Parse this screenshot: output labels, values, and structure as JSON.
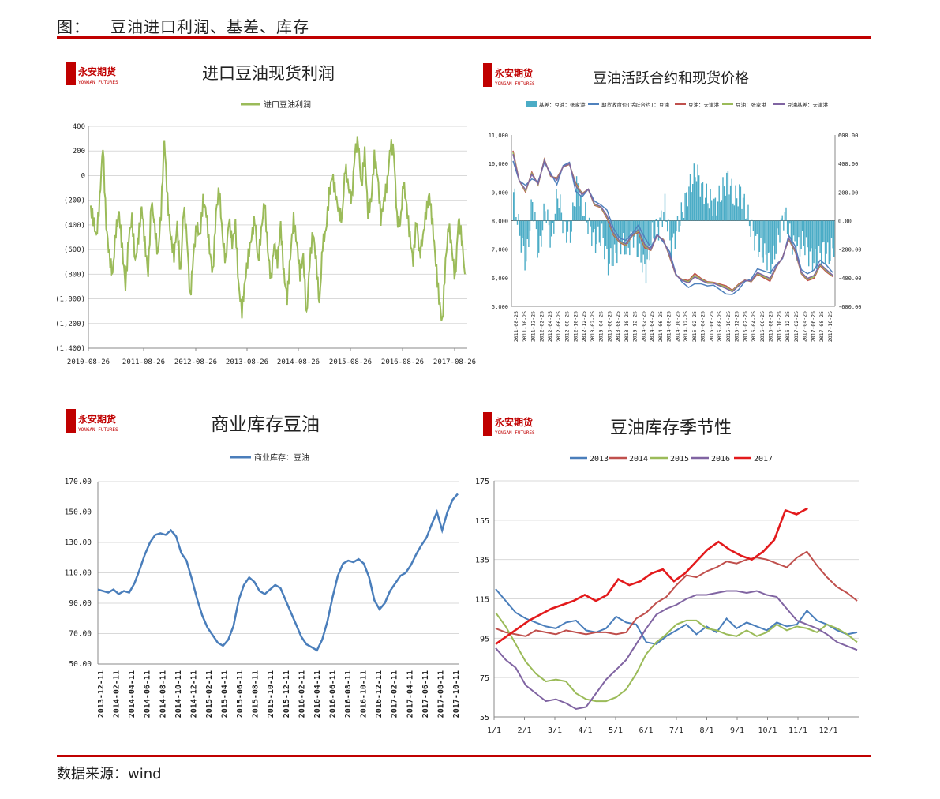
{
  "header": {
    "label": "图：",
    "title": "豆油进口利润、基差、库存"
  },
  "footer": {
    "source": "数据来源：wind"
  },
  "logo": {
    "text_cn": "永安期货",
    "text_en": "YONGAN FUTURES",
    "color": "#c00000"
  },
  "colors": {
    "rule": "#c00000",
    "profit": "#9bbb59",
    "basis": "#4bacc6",
    "futures": "#4f81bd",
    "spot_tj": "#c0504d",
    "spot_zjg": "#9bbb59",
    "basis_tj": "#8064a2",
    "inv": "#4a7ebb"
  },
  "chart_data": [
    {
      "type": "line",
      "title": "进口豆油现货利润",
      "series": [
        {
          "name": "进口豆油利润",
          "color": "#9bbb59"
        }
      ],
      "x_ticks": [
        "2010-08-26",
        "2011-08-26",
        "2012-08-26",
        "2013-08-26",
        "2014-08-26",
        "2015-08-26",
        "2016-08-26",
        "2017-08-26"
      ],
      "y_ticks": [
        "400",
        "200",
        "0",
        "(200)",
        "(400)",
        "(600)",
        "(800)",
        "(1,000)",
        "(1,200)",
        "(1,400)"
      ],
      "ylim": [
        -1400,
        400
      ],
      "values": [
        -250,
        -350,
        -500,
        -200,
        250,
        -400,
        -650,
        -800,
        -450,
        -300,
        -600,
        -900,
        -500,
        -350,
        -700,
        -500,
        -250,
        -550,
        -800,
        -200,
        -400,
        -650,
        -300,
        300,
        -200,
        -500,
        -650,
        -400,
        -800,
        -250,
        -500,
        -1000,
        -650,
        -400,
        -500,
        -200,
        -300,
        -600,
        -800,
        -300,
        -100,
        -500,
        -700,
        -350,
        -550,
        -400,
        -900,
        -1100,
        -850,
        -650,
        -500,
        -350,
        -700,
        -450,
        -200,
        -600,
        -850,
        -550,
        -700,
        -400,
        -800,
        -1000,
        -650,
        -350,
        -550,
        -800,
        -650,
        -1150,
        -700,
        -450,
        -700,
        -1050,
        -550,
        -450,
        -150,
        0,
        -150,
        -300,
        -350,
        80,
        -100,
        -200,
        200,
        280,
        -100,
        200,
        -300,
        -200,
        150,
        0,
        -350,
        -200,
        -50,
        250,
        200,
        -350,
        -400,
        -50,
        -250,
        -500,
        -700,
        -350,
        -650,
        -500,
        -300,
        -150,
        -400,
        -700,
        -1000,
        -1200,
        -700,
        -400,
        -600,
        -850,
        -350,
        -500,
        -800
      ]
    },
    {
      "type": "line",
      "title": "豆油活跃合约和现货价格",
      "legend": [
        "基差：豆油：张家港",
        "期货收盘价(活跃合约)：豆油",
        "豆油：天津港",
        "豆油：张家港",
        "豆油基差：天津港"
      ],
      "x_ticks": [
        "2011-08-25",
        "2011-10-25",
        "2011-12-25",
        "2012-02-25",
        "2012-04-25",
        "2012-06-25",
        "2012-08-25",
        "2012-10-25",
        "2012-12-25",
        "2013-02-25",
        "2013-04-25",
        "2013-06-25",
        "2013-08-25",
        "2013-10-25",
        "2013-12-25",
        "2014-02-25",
        "2014-04-25",
        "2014-06-25",
        "2014-08-25",
        "2014-10-25",
        "2014-12-25",
        "2015-02-25",
        "2015-04-25",
        "2015-06-25",
        "2015-08-25",
        "2015-10-25",
        "2015-12-25",
        "2016-02-25",
        "2016-04-25",
        "2016-06-25",
        "2016-08-25",
        "2016-10-25",
        "2016-12-25",
        "2017-02-25",
        "2017-04-25",
        "2017-06-25",
        "2017-08-25",
        "2017-10-25"
      ],
      "y_ticks_left": [
        "11,000",
        "10,000",
        "9,000",
        "8,000",
        "7,000",
        "6,000",
        "5,000"
      ],
      "y_ticks_right": [
        "600.00",
        "400.00",
        "200.00",
        "0.00",
        "-200.00",
        "-400.00",
        "-600.00"
      ],
      "ylim_left": [
        5000,
        11000
      ],
      "ylim_right": [
        -600,
        600
      ],
      "price": [
        10300,
        9400,
        9100,
        9600,
        9300,
        10100,
        9600,
        9400,
        9900,
        10000,
        9200,
        8900,
        9100,
        8600,
        8500,
        8200,
        7600,
        7300,
        7200,
        7500,
        7700,
        7200,
        7000,
        7500,
        7300,
        6800,
        6100,
        5900,
        5800,
        6000,
        5900,
        5800,
        5800,
        5700,
        5600,
        5500,
        5700,
        5900,
        5900,
        6200,
        6100,
        6000,
        6400,
        6700,
        7400,
        7000,
        6200,
        6000,
        6100,
        6500,
        6300,
        6100
      ],
      "basis": [
        200,
        -100,
        -300,
        150,
        -250,
        100,
        -150,
        200,
        -50,
        -100,
        250,
        100,
        -50,
        -150,
        -100,
        -300,
        -250,
        -150,
        -200,
        -100,
        -250,
        -350,
        -100,
        -50,
        100,
        -200,
        -50,
        100,
        250,
        350,
        200,
        150,
        100,
        200,
        300,
        150,
        200,
        50,
        -100,
        -200,
        -250,
        -300,
        -100,
        50,
        -150,
        -200,
        -150,
        -250,
        -300,
        -200,
        -250,
        -150
      ],
      "spot_offset": [
        150,
        0,
        -100,
        100,
        -50,
        50,
        -50,
        100,
        -20,
        -30,
        120,
        50,
        0,
        -60,
        -40,
        -120,
        -100,
        -60,
        -80,
        -40,
        -100,
        -150,
        -40,
        -20,
        40,
        -80,
        -20,
        40,
        100,
        150,
        80,
        60,
        40,
        80,
        120,
        60,
        80,
        20,
        -40,
        -80,
        -100,
        -120,
        -40,
        20,
        -60,
        -80,
        -60,
        -100,
        -120,
        -80,
        -100,
        -60
      ]
    },
    {
      "type": "line",
      "title": "商业库存豆油",
      "series": [
        {
          "name": "商业库存：豆油",
          "color": "#4a7ebb"
        }
      ],
      "x_ticks": [
        "2013-12-11",
        "2014-02-11",
        "2014-04-11",
        "2014-06-11",
        "2014-08-11",
        "2014-10-11",
        "2014-12-11",
        "2015-02-11",
        "2015-04-11",
        "2015-06-11",
        "2015-08-11",
        "2015-10-11",
        "2015-12-11",
        "2016-02-11",
        "2016-04-11",
        "2016-06-11",
        "2016-08-11",
        "2016-10-11",
        "2016-12-11",
        "2017-02-11",
        "2017-04-11",
        "2017-06-11",
        "2017-08-11",
        "2017-10-11"
      ],
      "y_ticks": [
        "170.00",
        "150.00",
        "130.00",
        "110.00",
        "90.00",
        "70.00",
        "50.00"
      ],
      "ylim": [
        50,
        170
      ],
      "values": [
        99,
        98,
        97,
        99,
        96,
        98,
        97,
        103,
        112,
        122,
        130,
        135,
        136,
        135,
        138,
        134,
        123,
        118,
        106,
        93,
        82,
        74,
        69,
        64,
        62,
        66,
        75,
        92,
        102,
        107,
        104,
        98,
        96,
        99,
        102,
        100,
        92,
        84,
        76,
        68,
        63,
        61,
        59,
        66,
        78,
        94,
        108,
        116,
        118,
        117,
        119,
        116,
        107,
        92,
        86,
        90,
        98,
        103,
        108,
        110,
        115,
        122,
        128,
        133,
        142,
        150,
        138,
        150,
        158,
        162
      ]
    },
    {
      "type": "line",
      "title": "豆油库存季节性",
      "x_ticks": [
        "1/1",
        "2/1",
        "3/1",
        "4/1",
        "5/1",
        "6/1",
        "7/1",
        "8/1",
        "9/1",
        "10/1",
        "11/1",
        "12/1"
      ],
      "y_ticks": [
        "175",
        "155",
        "135",
        "115",
        "95",
        "75",
        "55"
      ],
      "ylim": [
        55,
        175
      ],
      "series": [
        {
          "name": "2013",
          "color": "#4a7ebb",
          "values": [
            120,
            114,
            108,
            105,
            103,
            101,
            100,
            103,
            104,
            99,
            98,
            100,
            106,
            103,
            102,
            93,
            92,
            96,
            99,
            102,
            97,
            101,
            98,
            105,
            100,
            103,
            101,
            99,
            103,
            101,
            102,
            109,
            104,
            102,
            99,
            97,
            98
          ]
        },
        {
          "name": "2014",
          "color": "#c0504d",
          "values": [
            100,
            98,
            97,
            96,
            99,
            98,
            97,
            99,
            98,
            97,
            98,
            98,
            97,
            98,
            105,
            108,
            113,
            116,
            122,
            127,
            126,
            129,
            131,
            134,
            133,
            135,
            136,
            135,
            133,
            131,
            136,
            139,
            132,
            126,
            121,
            118,
            114
          ]
        },
        {
          "name": "2015",
          "color": "#9bbb59",
          "values": [
            108,
            101,
            92,
            83,
            77,
            73,
            74,
            73,
            67,
            64,
            63,
            63,
            65,
            69,
            77,
            87,
            93,
            97,
            102,
            104,
            104,
            100,
            99,
            97,
            96,
            99,
            96,
            98,
            102,
            99,
            101,
            100,
            98,
            102,
            100,
            97,
            93
          ]
        },
        {
          "name": "2016",
          "color": "#8064a2",
          "values": [
            90,
            84,
            80,
            71,
            67,
            63,
            64,
            62,
            59,
            60,
            67,
            74,
            79,
            84,
            92,
            100,
            107,
            110,
            112,
            115,
            117,
            117,
            118,
            119,
            119,
            118,
            119,
            117,
            116,
            110,
            104,
            102,
            100,
            97,
            93,
            91,
            89
          ]
        },
        {
          "name": "2017",
          "color": "#e31a1c",
          "values": [
            92,
            96,
            100,
            104,
            107,
            110,
            112,
            114,
            117,
            114,
            117,
            125,
            122,
            124,
            128,
            130,
            124,
            128,
            134,
            140,
            144,
            140,
            137,
            135,
            139,
            145,
            160,
            158,
            161
          ]
        }
      ]
    }
  ]
}
